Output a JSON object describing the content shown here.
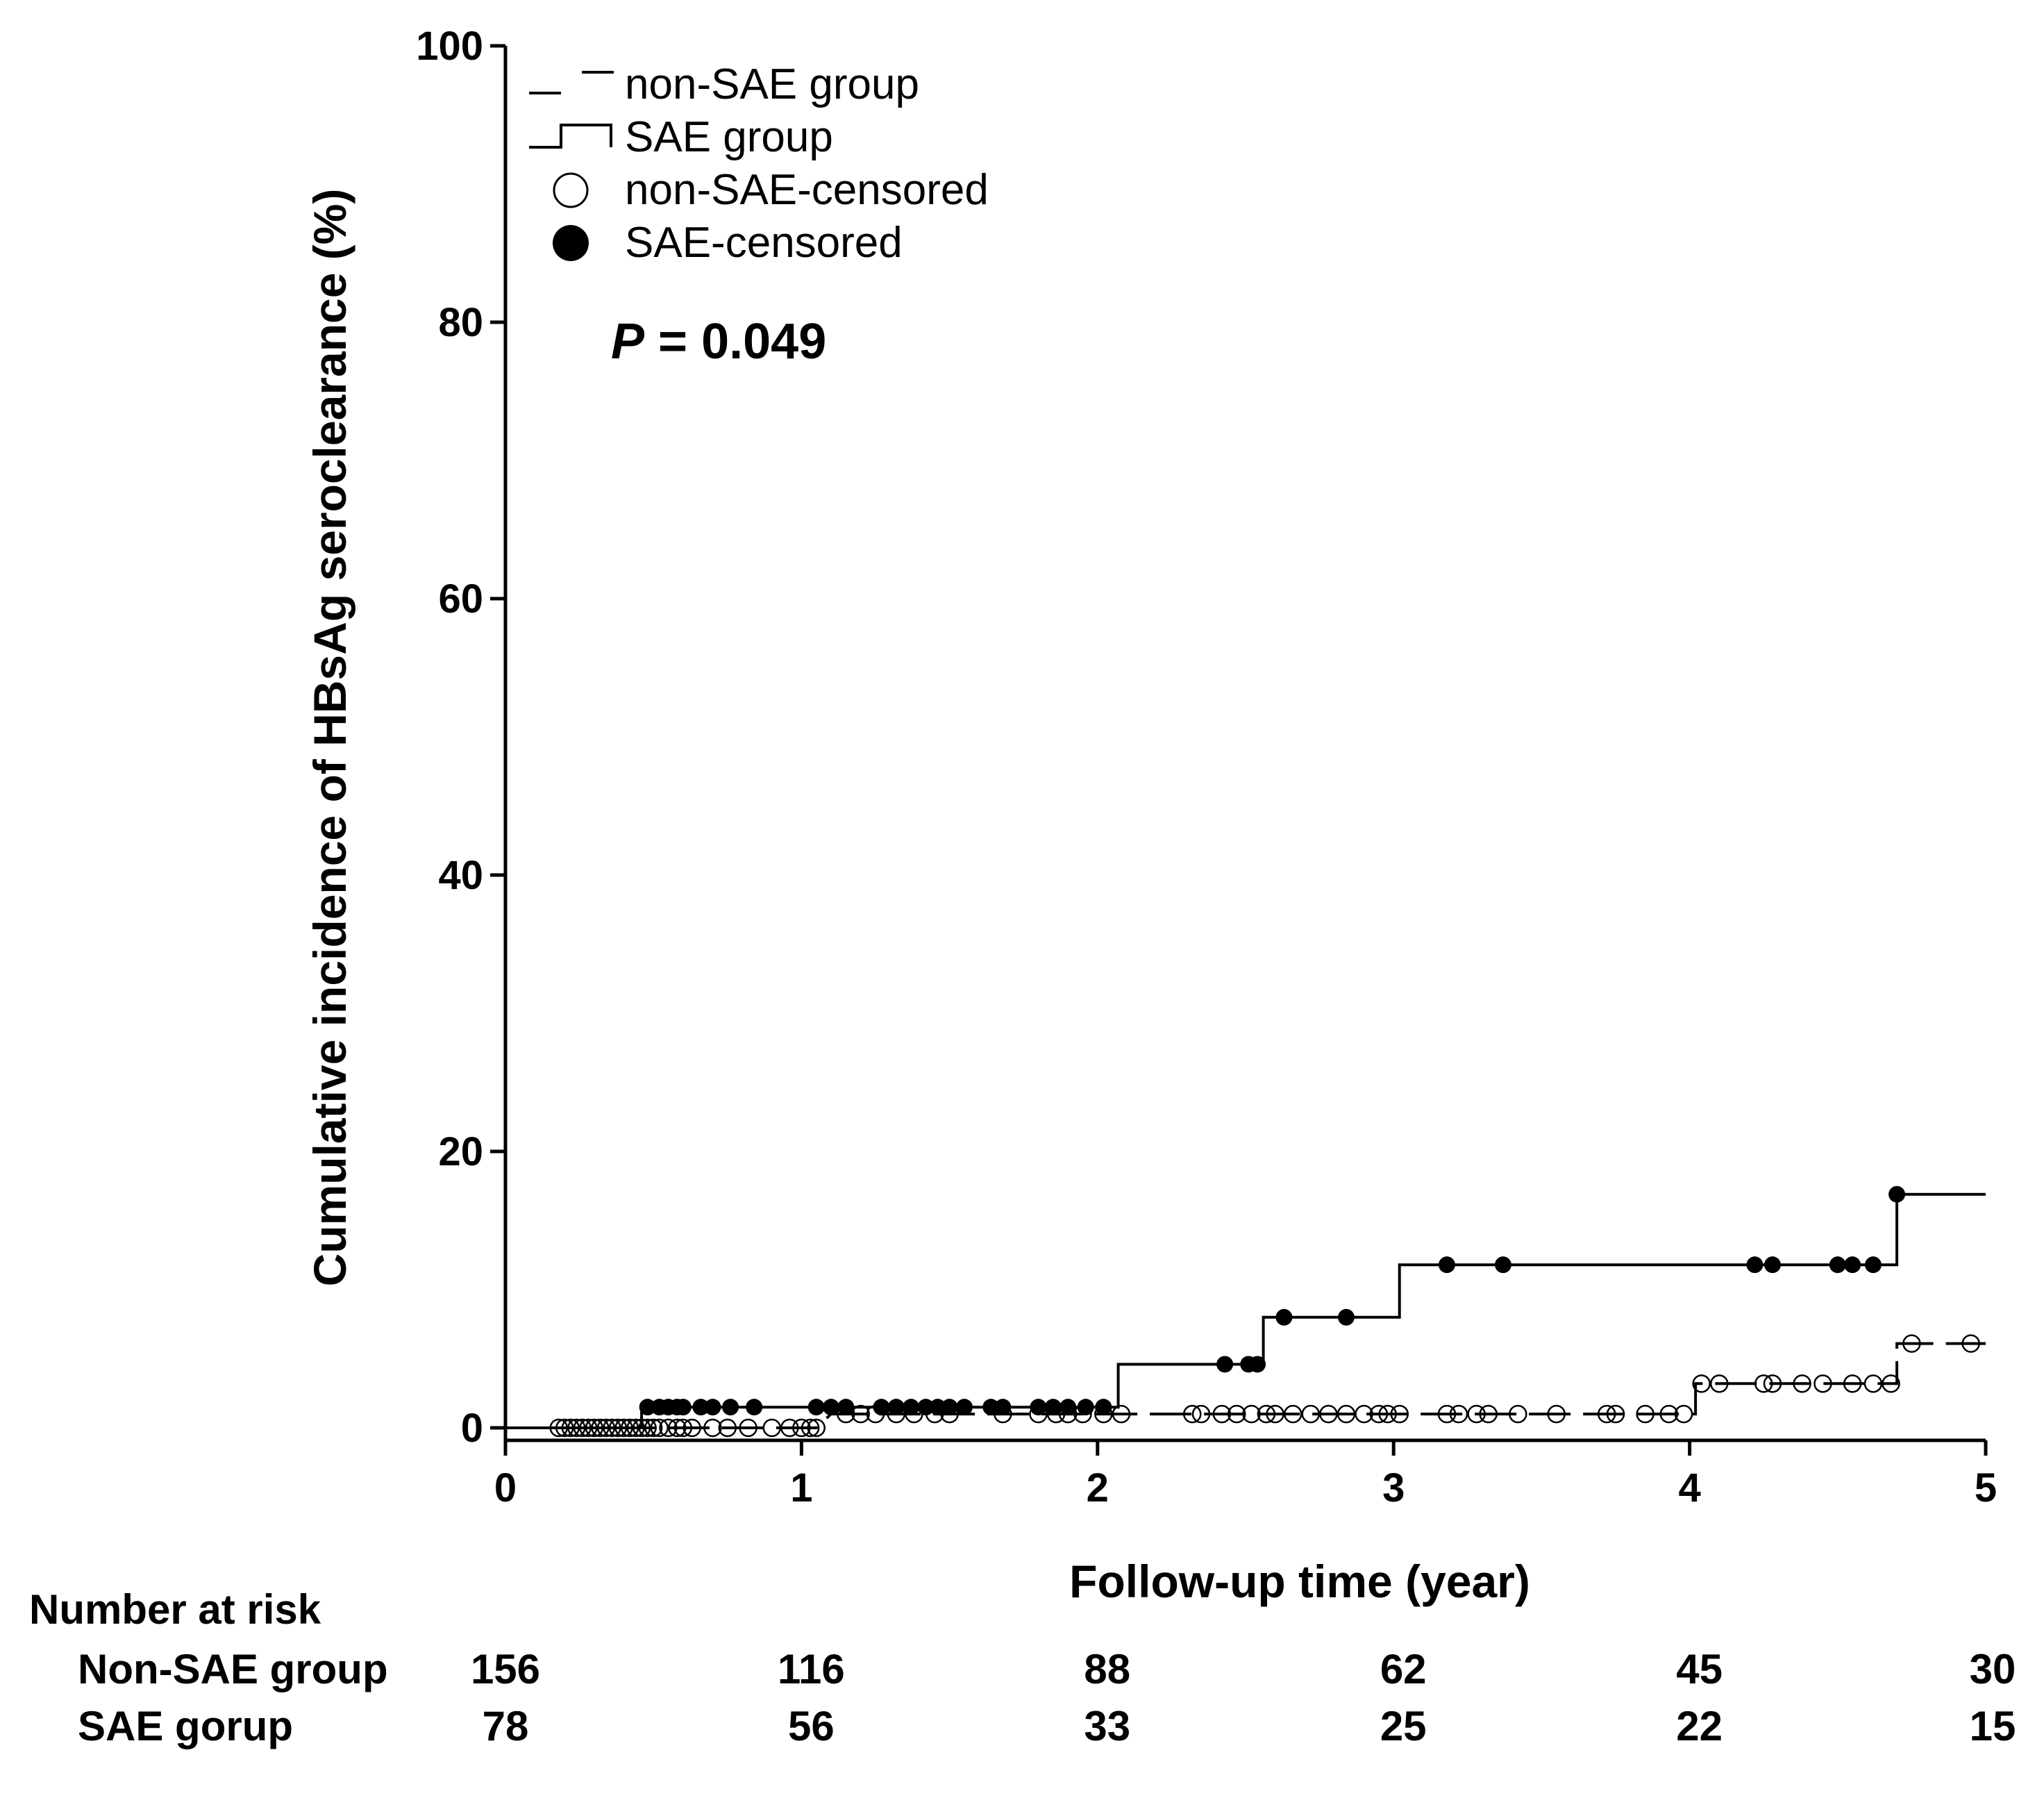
{
  "chart_data": {
    "type": "line",
    "subtype": "kaplan-meier-step",
    "ylabel": "Cumulative incidence of HBsAg seroclearance (%)",
    "xlabel": "Follow-up time (year)",
    "xlim": [
      0,
      5
    ],
    "ylim": [
      0,
      100
    ],
    "x_ticks": [
      "0",
      "1",
      "2",
      "3",
      "4",
      "5"
    ],
    "y_ticks": [
      "0",
      "20",
      "40",
      "60",
      "80",
      "100"
    ],
    "legend": {
      "placement": "top-left",
      "entries": [
        {
          "name": "non-SAE group",
          "style": "dashed-step"
        },
        {
          "name": "SAE group",
          "style": "solid-step"
        },
        {
          "name": "non-SAE-censored",
          "marker": "open-circle"
        },
        {
          "name": "SAE-censored",
          "marker": "filled-circle"
        }
      ]
    },
    "annotation": {
      "p_label": "P",
      "p_text": " = 0.049"
    },
    "series": [
      {
        "name": "non-SAE group",
        "steps": [
          [
            0,
            0
          ],
          [
            0.5,
            0
          ],
          [
            1.05,
            0
          ],
          [
            1.1,
            1.0
          ],
          [
            2.05,
            1.0
          ],
          [
            4.02,
            1.0
          ],
          [
            4.02,
            3.2
          ],
          [
            4.7,
            3.2
          ],
          [
            4.7,
            6.1
          ],
          [
            5.0,
            6.1
          ]
        ],
        "censored": [
          [
            0.18,
            0
          ],
          [
            0.2,
            0
          ],
          [
            0.22,
            0
          ],
          [
            0.24,
            0
          ],
          [
            0.26,
            0
          ],
          [
            0.28,
            0
          ],
          [
            0.3,
            0
          ],
          [
            0.32,
            0
          ],
          [
            0.34,
            0
          ],
          [
            0.36,
            0
          ],
          [
            0.38,
            0
          ],
          [
            0.4,
            0
          ],
          [
            0.42,
            0
          ],
          [
            0.44,
            0
          ],
          [
            0.46,
            0
          ],
          [
            0.48,
            0
          ],
          [
            0.5,
            0
          ],
          [
            0.52,
            0
          ],
          [
            0.55,
            0
          ],
          [
            0.58,
            0
          ],
          [
            0.6,
            0
          ],
          [
            0.63,
            0
          ],
          [
            0.7,
            0
          ],
          [
            0.75,
            0
          ],
          [
            0.82,
            0
          ],
          [
            0.9,
            0
          ],
          [
            0.96,
            0
          ],
          [
            1.0,
            0
          ],
          [
            1.03,
            0
          ],
          [
            1.05,
            0
          ],
          [
            1.15,
            1.0
          ],
          [
            1.2,
            1.0
          ],
          [
            1.25,
            1.0
          ],
          [
            1.32,
            1.0
          ],
          [
            1.38,
            1.0
          ],
          [
            1.45,
            1.0
          ],
          [
            1.5,
            1.0
          ],
          [
            1.68,
            1.0
          ],
          [
            1.8,
            1.0
          ],
          [
            1.86,
            1.0
          ],
          [
            1.9,
            1.0
          ],
          [
            1.95,
            1.0
          ],
          [
            2.02,
            1.0
          ],
          [
            2.08,
            1.0
          ],
          [
            2.32,
            1.0
          ],
          [
            2.35,
            1.0
          ],
          [
            2.42,
            1.0
          ],
          [
            2.47,
            1.0
          ],
          [
            2.52,
            1.0
          ],
          [
            2.57,
            1.0
          ],
          [
            2.6,
            1.0
          ],
          [
            2.66,
            1.0
          ],
          [
            2.72,
            1.0
          ],
          [
            2.78,
            1.0
          ],
          [
            2.84,
            1.0
          ],
          [
            2.9,
            1.0
          ],
          [
            2.95,
            1.0
          ],
          [
            2.98,
            1.0
          ],
          [
            3.02,
            1.0
          ],
          [
            3.18,
            1.0
          ],
          [
            3.22,
            1.0
          ],
          [
            3.28,
            1.0
          ],
          [
            3.32,
            1.0
          ],
          [
            3.42,
            1.0
          ],
          [
            3.55,
            1.0
          ],
          [
            3.72,
            1.0
          ],
          [
            3.75,
            1.0
          ],
          [
            3.85,
            1.0
          ],
          [
            3.93,
            1.0
          ],
          [
            3.98,
            1.0
          ],
          [
            4.04,
            3.2
          ],
          [
            4.1,
            3.2
          ],
          [
            4.25,
            3.2
          ],
          [
            4.28,
            3.2
          ],
          [
            4.38,
            3.2
          ],
          [
            4.45,
            3.2
          ],
          [
            4.55,
            3.2
          ],
          [
            4.62,
            3.2
          ],
          [
            4.68,
            3.2
          ],
          [
            4.75,
            6.1
          ],
          [
            4.95,
            6.1
          ]
        ]
      },
      {
        "name": "SAE group",
        "steps": [
          [
            0,
            0
          ],
          [
            0.46,
            0
          ],
          [
            0.46,
            1.5
          ],
          [
            2.07,
            1.5
          ],
          [
            2.07,
            4.6
          ],
          [
            2.56,
            4.6
          ],
          [
            2.56,
            8.0
          ],
          [
            3.02,
            8.0
          ],
          [
            3.02,
            11.8
          ],
          [
            4.7,
            11.8
          ],
          [
            4.7,
            16.9
          ],
          [
            5.0,
            16.9
          ]
        ],
        "censored": [
          [
            0.48,
            1.5
          ],
          [
            0.52,
            1.5
          ],
          [
            0.55,
            1.5
          ],
          [
            0.58,
            1.5
          ],
          [
            0.6,
            1.5
          ],
          [
            0.66,
            1.5
          ],
          [
            0.7,
            1.5
          ],
          [
            0.76,
            1.5
          ],
          [
            0.84,
            1.5
          ],
          [
            1.05,
            1.5
          ],
          [
            1.1,
            1.5
          ],
          [
            1.15,
            1.5
          ],
          [
            1.27,
            1.5
          ],
          [
            1.32,
            1.5
          ],
          [
            1.37,
            1.5
          ],
          [
            1.42,
            1.5
          ],
          [
            1.46,
            1.5
          ],
          [
            1.5,
            1.5
          ],
          [
            1.55,
            1.5
          ],
          [
            1.64,
            1.5
          ],
          [
            1.68,
            1.5
          ],
          [
            1.8,
            1.5
          ],
          [
            1.85,
            1.5
          ],
          [
            1.9,
            1.5
          ],
          [
            1.96,
            1.5
          ],
          [
            2.02,
            1.5
          ],
          [
            2.43,
            4.6
          ],
          [
            2.51,
            4.6
          ],
          [
            2.54,
            4.6
          ],
          [
            2.63,
            8.0
          ],
          [
            2.84,
            8.0
          ],
          [
            3.18,
            11.8
          ],
          [
            3.37,
            11.8
          ],
          [
            4.22,
            11.8
          ],
          [
            4.28,
            11.8
          ],
          [
            4.5,
            11.8
          ],
          [
            4.55,
            11.8
          ],
          [
            4.62,
            11.8
          ],
          [
            4.7,
            16.9
          ]
        ]
      }
    ],
    "number_at_risk": {
      "title": "Number at risk",
      "times": [
        0,
        1,
        2,
        3,
        4,
        5
      ],
      "rows": [
        {
          "label": "Non-SAE group",
          "values": [
            "156",
            "116",
            "88",
            "62",
            "45",
            "30"
          ]
        },
        {
          "label": "SAE gorup",
          "values": [
            "78",
            "56",
            "33",
            "25",
            "22",
            "15"
          ]
        }
      ]
    }
  }
}
